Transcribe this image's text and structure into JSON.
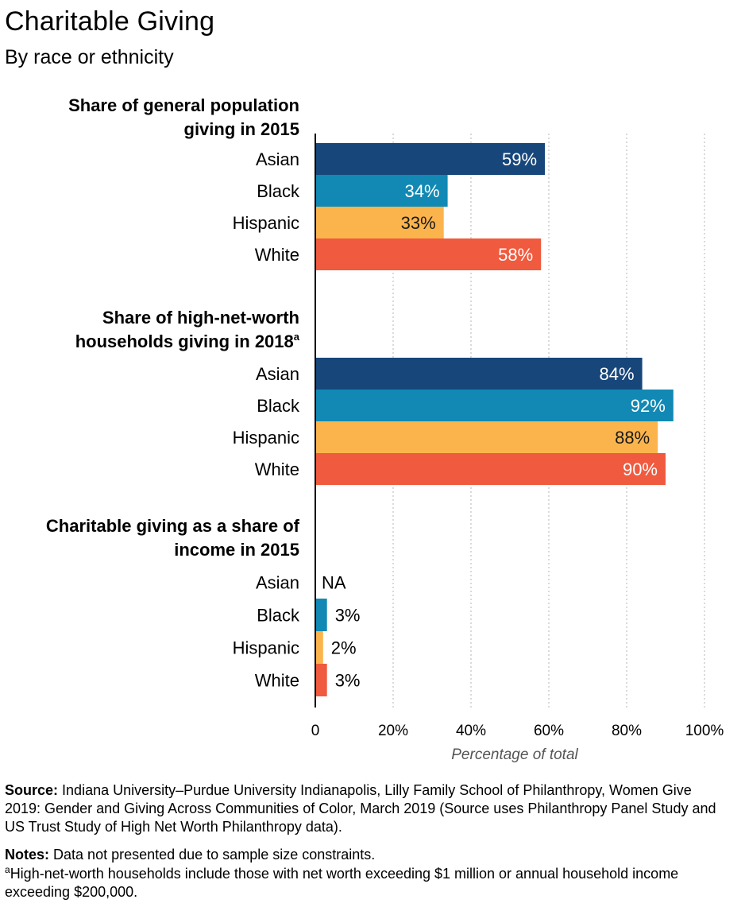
{
  "title": "Charitable Giving",
  "subtitle": "By race or ethnicity",
  "chart_data": {
    "type": "bar",
    "orientation": "horizontal",
    "xlabel": "Percentage of total",
    "xlim": [
      0,
      100
    ],
    "x_ticks": [
      "0",
      "20%",
      "40%",
      "60%",
      "80%",
      "100%"
    ],
    "grid": "vertical dotted",
    "category_colors": {
      "Asian": "#17467b",
      "Black": "#1189b4",
      "Hispanic": "#fbb44c",
      "White": "#f05a3e"
    },
    "groups": [
      {
        "title_lines": [
          "Share of general population",
          "giving in 2015"
        ],
        "title_sup": "",
        "categories": [
          "Asian",
          "Black",
          "Hispanic",
          "White"
        ],
        "values": [
          59,
          34,
          33,
          58
        ],
        "labels": [
          "59%",
          "34%",
          "33%",
          "58%"
        ]
      },
      {
        "title_lines": [
          "Share of high-net-worth",
          "households giving in 2018"
        ],
        "title_sup": "a",
        "categories": [
          "Asian",
          "Black",
          "Hispanic",
          "White"
        ],
        "values": [
          84,
          92,
          88,
          90
        ],
        "labels": [
          "84%",
          "92%",
          "88%",
          "90%"
        ]
      },
      {
        "title_lines": [
          "Charitable giving as a share of",
          "income in 2015"
        ],
        "title_sup": "",
        "categories": [
          "Asian",
          "Black",
          "Hispanic",
          "White"
        ],
        "values": [
          null,
          3,
          2,
          3
        ],
        "labels": [
          "NA",
          "3%",
          "2%",
          "3%"
        ]
      }
    ]
  },
  "footer": {
    "source_label": "Source:",
    "source_text": "Indiana University–Purdue University Indianapolis, Lilly Family School of Philanthropy, Women Give 2019: Gender and Giving Across Communities of Color, March 2019 (Source uses Philanthropy Panel Study and US Trust Study of High Net Worth Philanthropy data).",
    "notes_label": "Notes:",
    "notes_text": "Data not presented due to sample size constraints.",
    "footnote_marker": "a",
    "footnote_text": "High-net-worth households include those with net worth exceeding $1 million or annual household income exceeding $200,000."
  }
}
